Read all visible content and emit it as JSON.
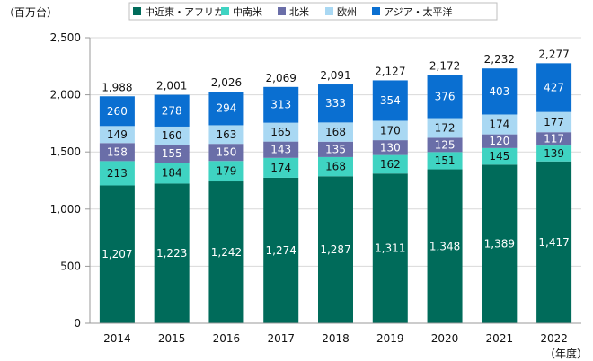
{
  "chart_data": {
    "type": "bar",
    "stacked": true,
    "y_unit_label": "（百万台）",
    "x_unit_label": "（年度）",
    "categories": [
      "2014",
      "2015",
      "2016",
      "2017",
      "2018",
      "2019",
      "2020",
      "2021",
      "2022"
    ],
    "series": [
      {
        "name": "中近東・アフリカ",
        "color": "#006b5a",
        "label_color": "#ffffff",
        "values": [
          1207,
          1223,
          1242,
          1274,
          1287,
          1311,
          1348,
          1389,
          1417
        ]
      },
      {
        "name": "中南米",
        "color": "#3fd3c2",
        "label_color": "#111111",
        "values": [
          213,
          184,
          179,
          174,
          168,
          162,
          151,
          145,
          139
        ]
      },
      {
        "name": "北米",
        "color": "#6a6ea8",
        "label_color": "#ffffff",
        "values": [
          158,
          155,
          150,
          143,
          135,
          130,
          125,
          120,
          117
        ]
      },
      {
        "name": "欧州",
        "color": "#a9d8f3",
        "label_color": "#111111",
        "values": [
          149,
          160,
          163,
          165,
          168,
          170,
          172,
          174,
          177
        ]
      },
      {
        "name": "アジア・太平洋",
        "color": "#0a6fd1",
        "label_color": "#ffffff",
        "values": [
          260,
          278,
          294,
          313,
          333,
          354,
          376,
          403,
          427
        ]
      }
    ],
    "totals": [
      "1,988",
      "2,001",
      "2,026",
      "2,069",
      "2,091",
      "2,127",
      "2,172",
      "2,232",
      "2,277"
    ],
    "yticks": [
      0,
      500,
      1000,
      1500,
      2000,
      2500
    ],
    "ylim": [
      0,
      2500
    ],
    "grid": true,
    "legend": "top"
  }
}
